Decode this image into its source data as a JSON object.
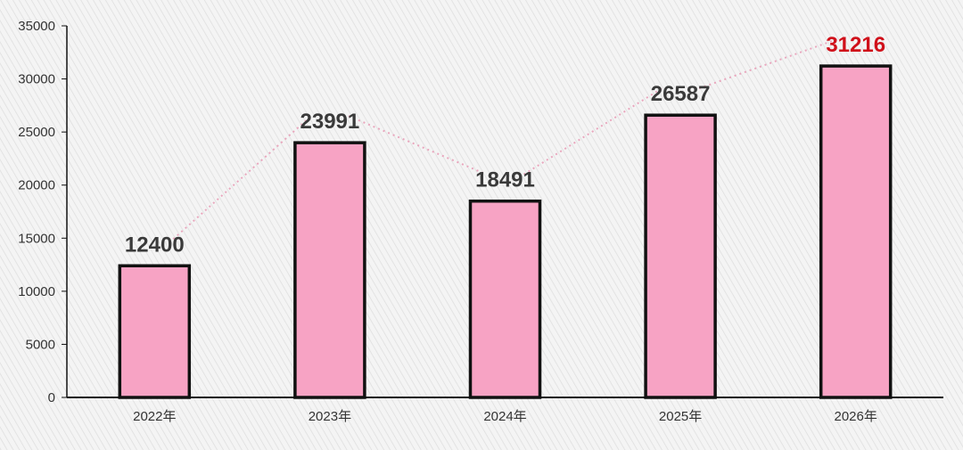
{
  "chart_data": {
    "type": "bar",
    "title": "",
    "xlabel": "",
    "ylabel": "",
    "categories": [
      "2022年",
      "2023年",
      "2024年",
      "2025年",
      "2026年"
    ],
    "values": [
      12400,
      23991,
      18491,
      26587,
      31216
    ],
    "data_labels": [
      "12400",
      "23991",
      "18491",
      "26587",
      "31216"
    ],
    "ylim": [
      0,
      35000
    ],
    "yticks": [
      0,
      5000,
      10000,
      15000,
      20000,
      25000,
      30000,
      35000
    ],
    "ytick_labels": [
      "0",
      "5000",
      "10000",
      "15000",
      "20000",
      "25000",
      "30000",
      "35000"
    ],
    "grid": false,
    "trendline": {
      "shown": true,
      "style": "dotted"
    },
    "colors": {
      "bar_fill": "#f7a3c4",
      "bar_border": "#111111",
      "label_default": "#3a3a3a",
      "label_highlight": "#d0101a",
      "trendline": "#e9a6bd",
      "background_stripes": "#e6e6e6",
      "axis": "#111111"
    },
    "highlight_index": 4
  }
}
